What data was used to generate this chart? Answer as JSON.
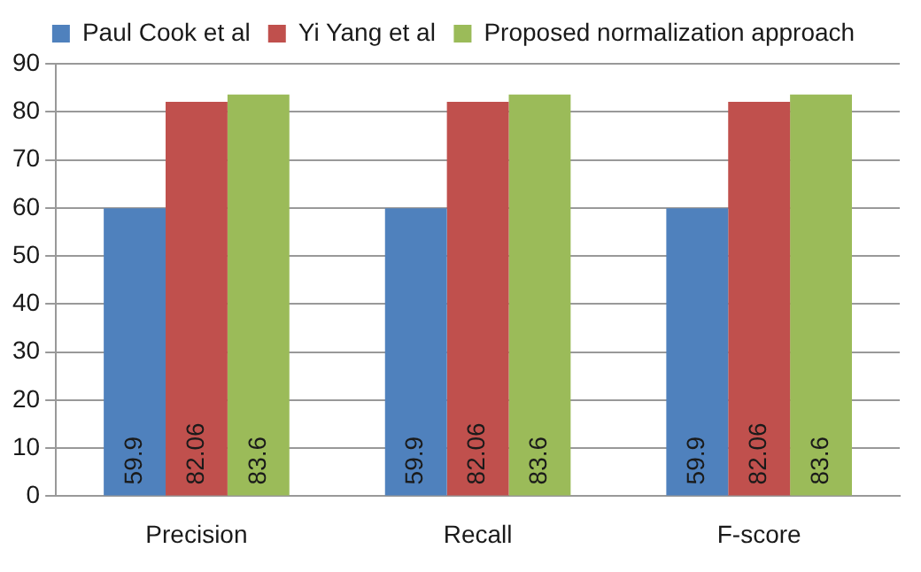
{
  "chart_data": {
    "type": "bar",
    "categories": [
      "Precision",
      "Recall",
      "F-score"
    ],
    "series": [
      {
        "name": "Paul Cook et al",
        "color": "#4f81bd",
        "values": [
          59.9,
          59.9,
          59.9
        ]
      },
      {
        "name": "Yi Yang et al",
        "color": "#c0504d",
        "values": [
          82.06,
          82.06,
          82.06
        ]
      },
      {
        "name": "Proposed normalization approach",
        "color": "#9bbb59",
        "values": [
          83.6,
          83.6,
          83.6
        ]
      }
    ],
    "ylim": [
      0,
      90
    ],
    "yticks": [
      0,
      10,
      20,
      30,
      40,
      50,
      60,
      70,
      80,
      90
    ],
    "grid": "y",
    "legend": "top",
    "data_labels": true
  }
}
